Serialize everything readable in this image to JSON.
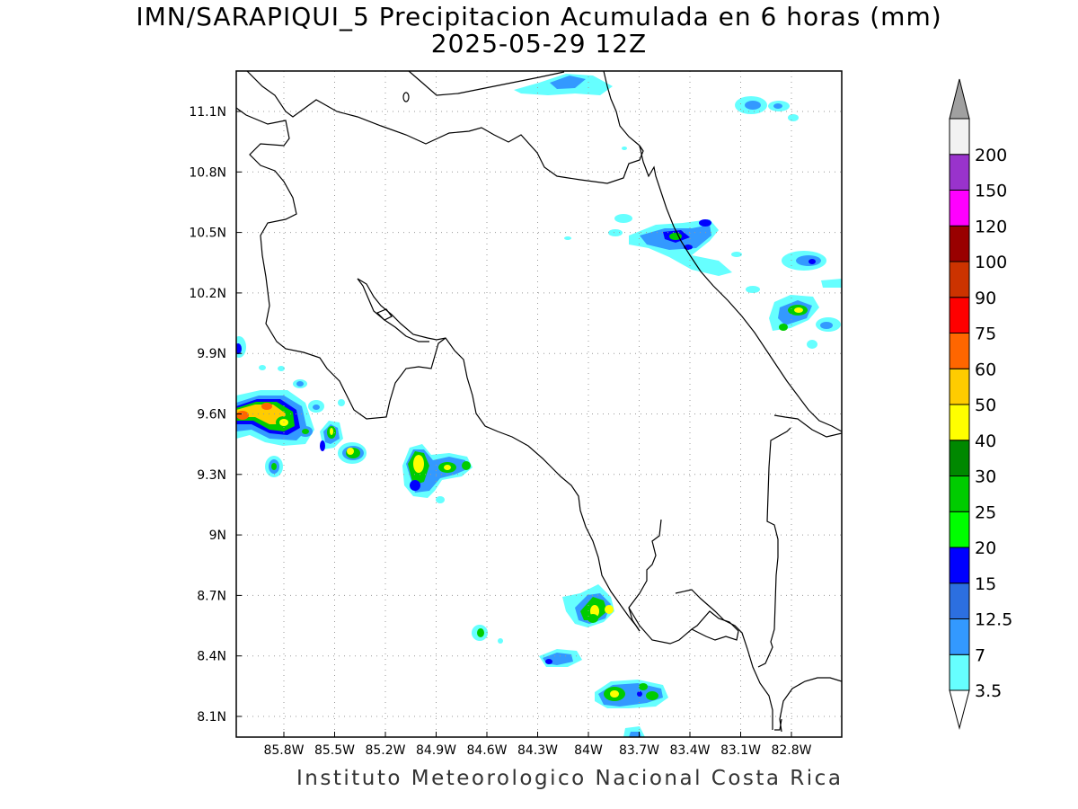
{
  "title": "IMN/SARAPIQUI_5 Precipitacion Acumulada en 6 horas (mm)",
  "subtitle": "2025-05-29 12Z",
  "footer": "Instituto Meteorologico Nacional Costa Rica",
  "map": {
    "lon_range": [
      -86.1,
      -83.1
    ],
    "lat_range": [
      8.0,
      11.3
    ],
    "lon_ticks": [
      {
        "value": -85.8,
        "label": "85.8W"
      },
      {
        "value": -85.5,
        "label": "85.5W"
      },
      {
        "value": -85.2,
        "label": "85.2W"
      },
      {
        "value": -84.9,
        "label": "84.9W"
      },
      {
        "value": -84.6,
        "label": "84.6W"
      },
      {
        "value": -84.3,
        "label": "84.3W"
      },
      {
        "value": -84.0,
        "label": "84W"
      },
      {
        "value": -83.7,
        "label": "83.7W"
      },
      {
        "value": -83.4,
        "label": "83.4W"
      },
      {
        "value": -83.1,
        "label": "83.1W"
      },
      {
        "value": -82.8,
        "label": "82.8W"
      }
    ],
    "lat_ticks": [
      {
        "value": 11.1,
        "label": "11.1N"
      },
      {
        "value": 10.8,
        "label": "10.8N"
      },
      {
        "value": 10.5,
        "label": "10.5N"
      },
      {
        "value": 10.2,
        "label": "10.2N"
      },
      {
        "value": 9.9,
        "label": "9.9N"
      },
      {
        "value": 9.6,
        "label": "9.6N"
      },
      {
        "value": 9.3,
        "label": "9.3N"
      },
      {
        "value": 9.0,
        "label": "9N"
      },
      {
        "value": 8.7,
        "label": "8.7N"
      },
      {
        "value": 8.4,
        "label": "8.4N"
      },
      {
        "value": 8.1,
        "label": "8.1N"
      }
    ],
    "grid": true
  },
  "legend": {
    "units": "mm",
    "bins": [
      {
        "label": "3.5",
        "color": "#66ffff"
      },
      {
        "label": "7",
        "color": "#3399ff"
      },
      {
        "label": "12.5",
        "color": "#2c6fe0"
      },
      {
        "label": "15",
        "color": "#0000ff"
      },
      {
        "label": "20",
        "color": "#00ff00"
      },
      {
        "label": "25",
        "color": "#00cc00"
      },
      {
        "label": "30",
        "color": "#008800"
      },
      {
        "label": "40",
        "color": "#ffff00"
      },
      {
        "label": "50",
        "color": "#ffcc00"
      },
      {
        "label": "60",
        "color": "#ff6600"
      },
      {
        "label": "75",
        "color": "#ff0000"
      },
      {
        "label": "90",
        "color": "#cc3300"
      },
      {
        "label": "100",
        "color": "#990000"
      },
      {
        "label": "120",
        "color": "#ff00ff"
      },
      {
        "label": "150",
        "color": "#9933cc"
      },
      {
        "label": "200",
        "color": "#f2f2f2"
      }
    ],
    "over_color": "#a0a0a0",
    "under_color": "#ffffff"
  }
}
